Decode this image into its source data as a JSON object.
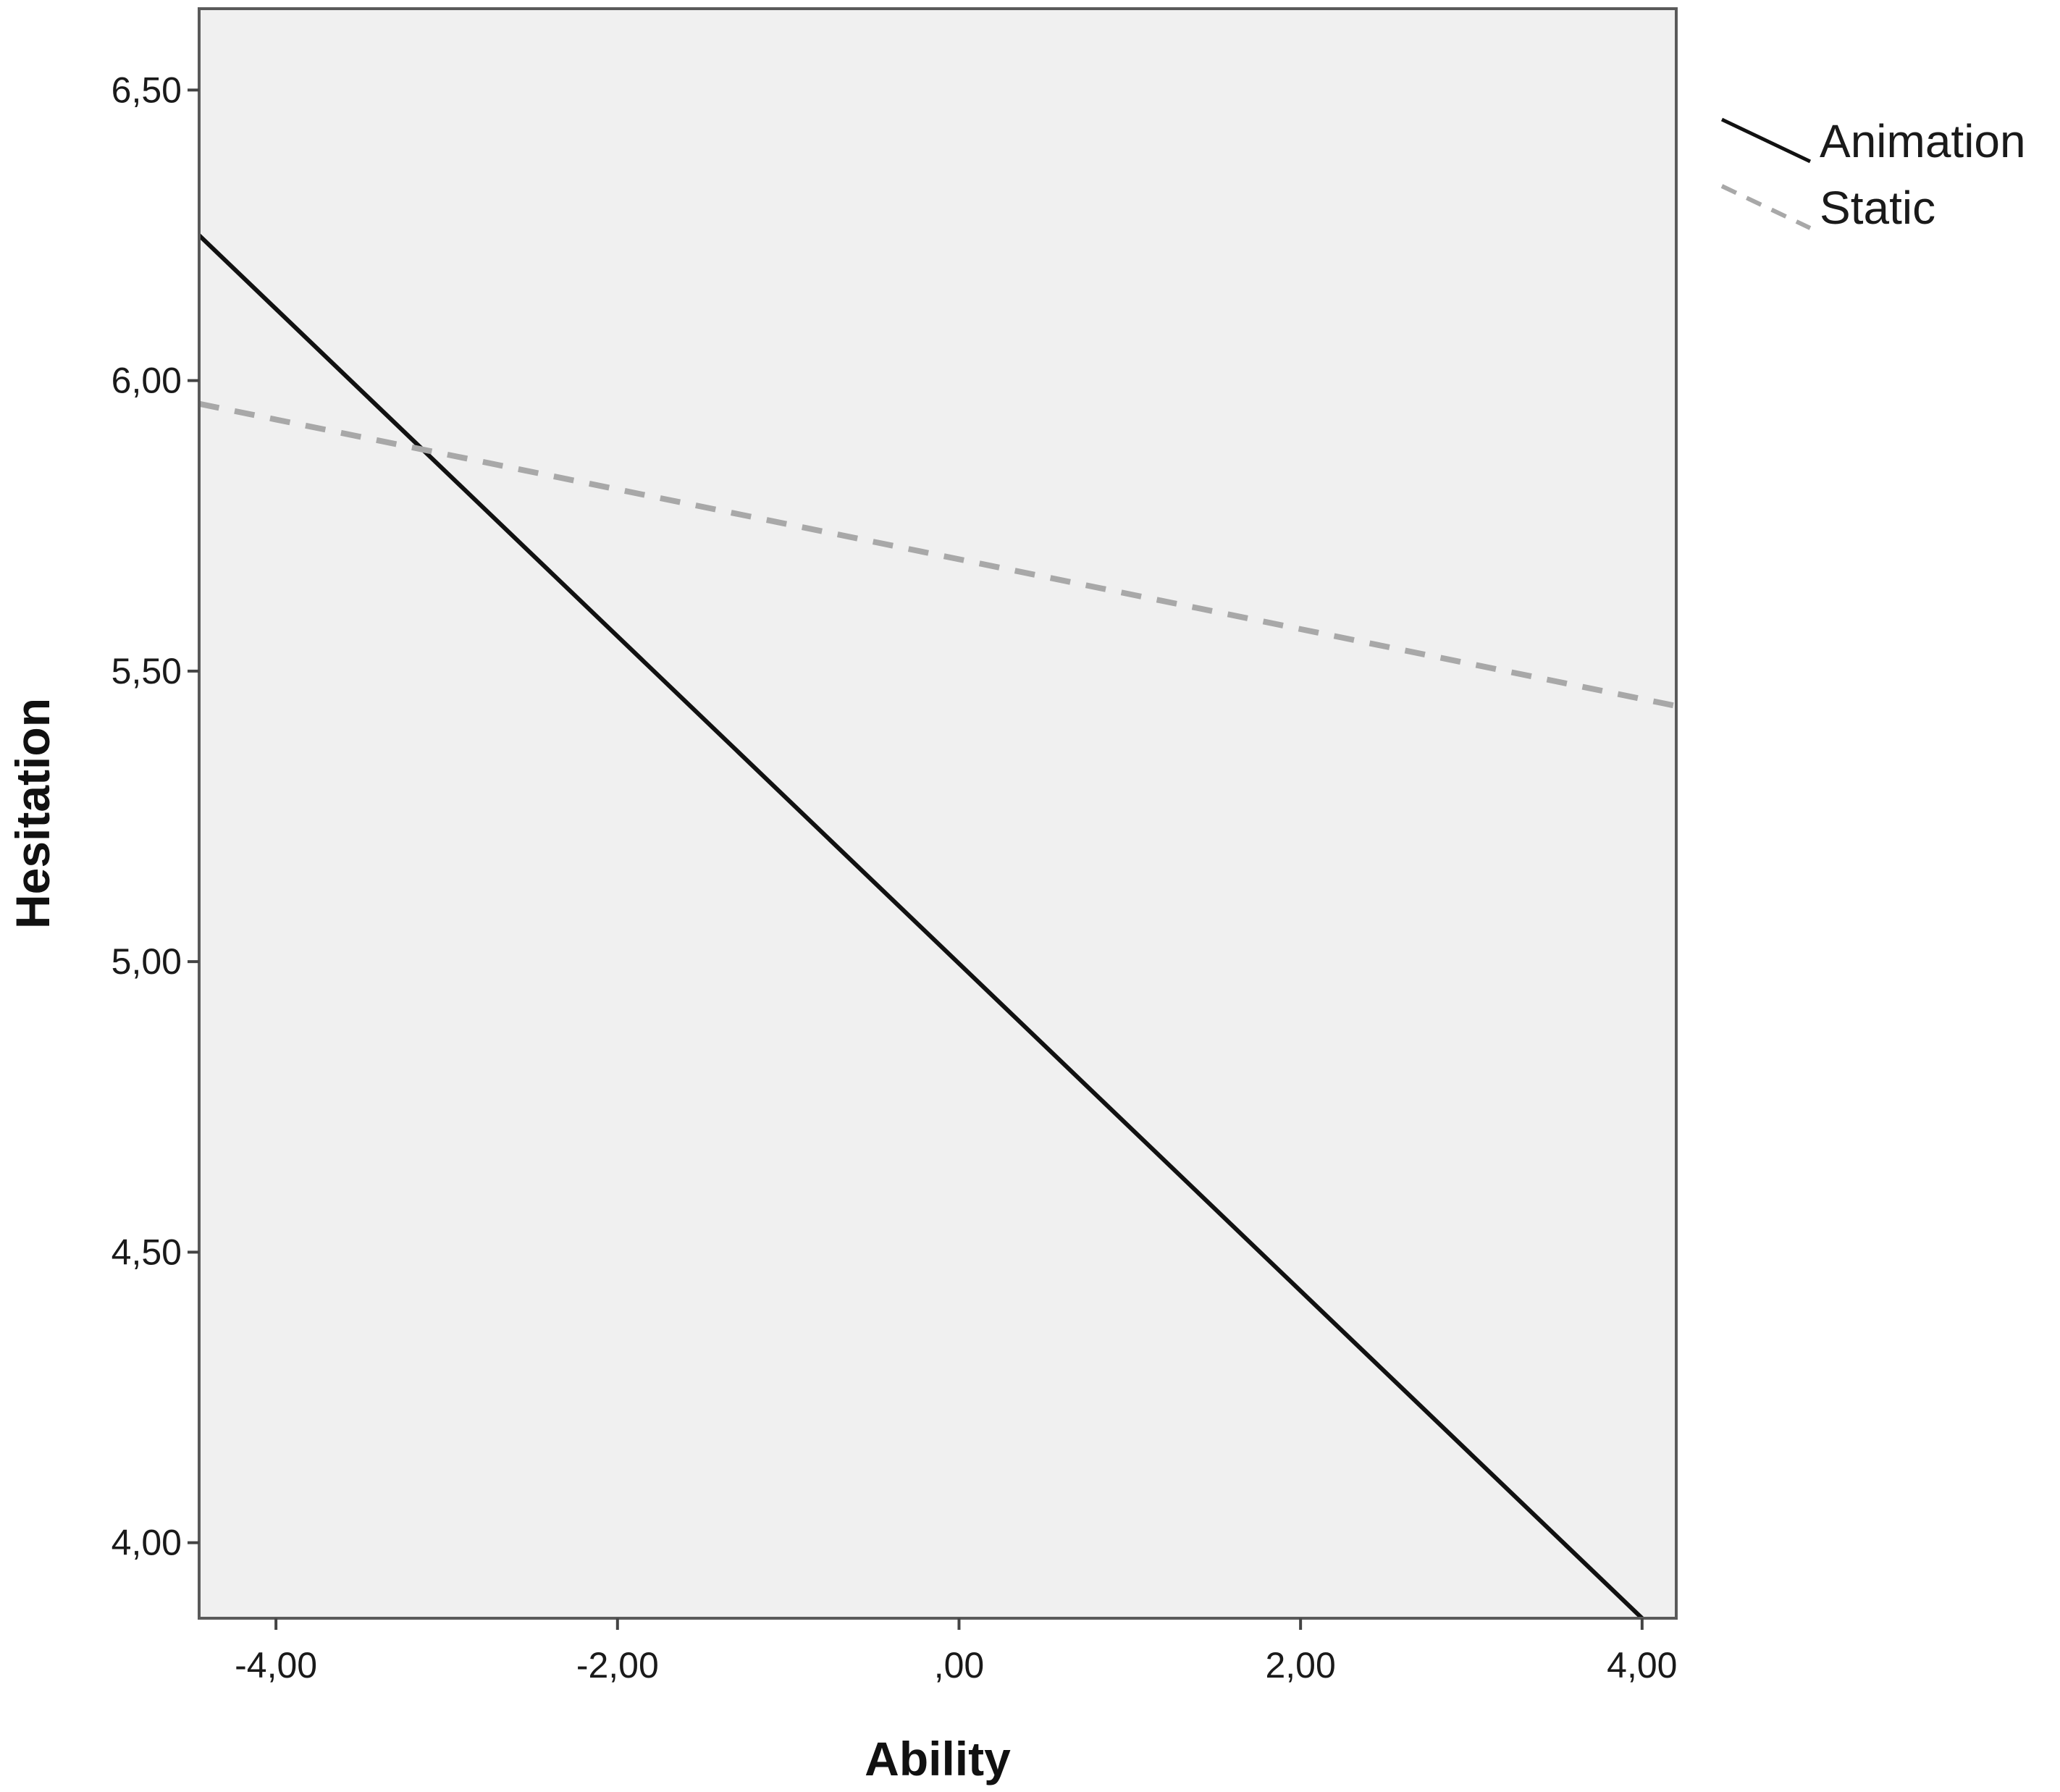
{
  "chart_data": {
    "type": "line",
    "xlabel": "Ability",
    "ylabel": "Hesitation",
    "xlim": [
      -4.45,
      4.2
    ],
    "ylim": [
      3.87,
      6.64
    ],
    "x_ticks": [
      -4,
      -2,
      0,
      2,
      4
    ],
    "x_tick_labels": [
      "-4,00",
      "-2,00",
      ",00",
      "2,00",
      "4,00"
    ],
    "y_ticks": [
      4,
      4.5,
      5,
      5.5,
      6,
      6.5
    ],
    "y_tick_labels": [
      "4,00",
      "4,50",
      "5,00",
      "5,50",
      "6,00",
      "6,50"
    ],
    "grid": false,
    "legend_position": "outside-top-right",
    "plot_background": "#f0f0f0",
    "series": [
      {
        "name": "Animation",
        "style": "solid",
        "color": "#111111",
        "x": [
          -4.45,
          4.0
        ],
        "y": [
          6.25,
          3.87
        ]
      },
      {
        "name": "Static",
        "style": "dashed",
        "color": "#a8a8a8",
        "x": [
          -4.45,
          4.2
        ],
        "y": [
          5.96,
          5.44
        ]
      }
    ]
  }
}
